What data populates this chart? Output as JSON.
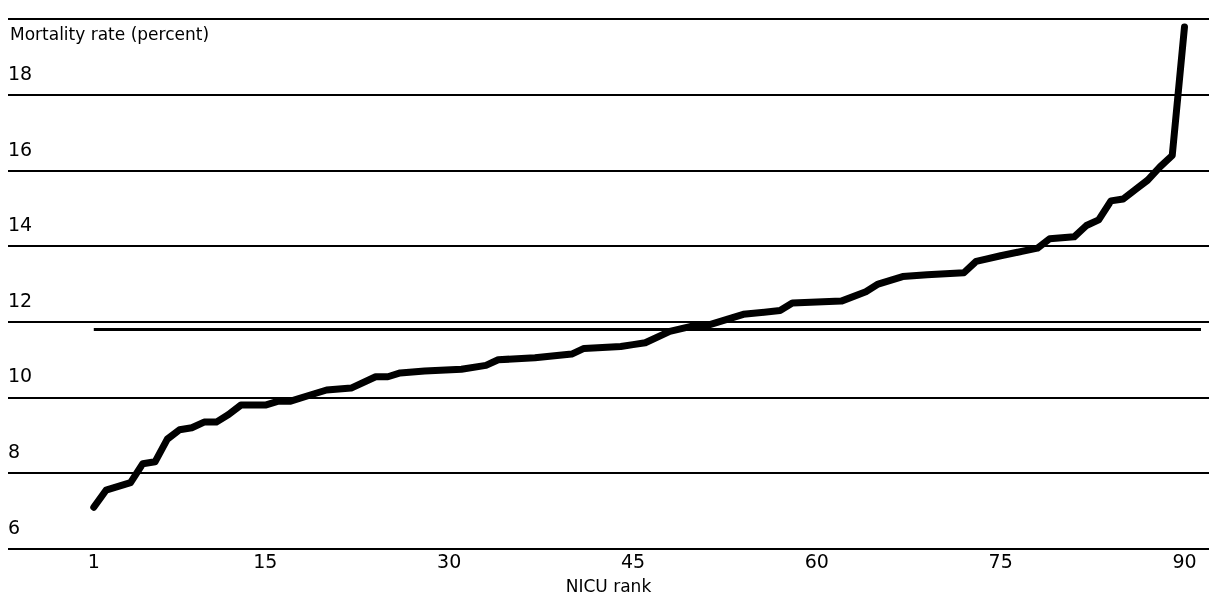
{
  "chart_data": {
    "type": "line",
    "ylabel": "Mortality rate (percent)",
    "xlabel": "NICU rank",
    "xlim": [
      -6,
      92
    ],
    "xticks": [
      1,
      15,
      30,
      45,
      60,
      75,
      90
    ],
    "ylim": [
      6,
      20
    ],
    "yticks": [
      6,
      8,
      10,
      12,
      14,
      16,
      18,
      {
        "value": 20,
        "label": null
      }
    ],
    "grid": "y",
    "legend": false,
    "marker": "none",
    "line_style": "solid",
    "ref_lines": [
      {
        "axis": "y",
        "value": 11.8,
        "color": "#000000"
      }
    ],
    "series": [
      {
        "color": "#000000",
        "x": [
          1,
          2,
          4,
          5,
          6,
          7,
          8,
          9,
          10,
          11,
          12,
          13,
          15,
          16,
          17,
          19,
          20,
          22,
          24,
          25,
          26,
          28,
          31,
          33,
          34,
          37,
          40,
          41,
          44,
          45,
          46,
          48,
          50,
          51,
          53,
          54,
          57,
          58,
          62,
          64,
          65,
          67,
          69,
          72,
          73,
          75,
          78,
          79,
          81,
          82,
          83,
          84,
          85,
          86,
          87,
          88,
          89,
          90
        ],
        "values": [
          7.1,
          7.55,
          7.75,
          8.25,
          8.3,
          8.9,
          9.15,
          9.2,
          9.35,
          9.35,
          9.55,
          9.8,
          9.8,
          9.9,
          9.9,
          10.1,
          10.2,
          10.25,
          10.55,
          10.55,
          10.65,
          10.7,
          10.75,
          10.85,
          11.0,
          11.05,
          11.15,
          11.3,
          11.35,
          11.4,
          11.45,
          11.75,
          11.9,
          11.9,
          12.1,
          12.2,
          12.3,
          12.5,
          12.55,
          12.8,
          13.0,
          13.2,
          13.25,
          13.3,
          13.6,
          13.75,
          13.95,
          14.2,
          14.25,
          14.55,
          14.7,
          15.2,
          15.25,
          15.5,
          15.75,
          16.1,
          16.4,
          19.8
        ]
      }
    ]
  }
}
